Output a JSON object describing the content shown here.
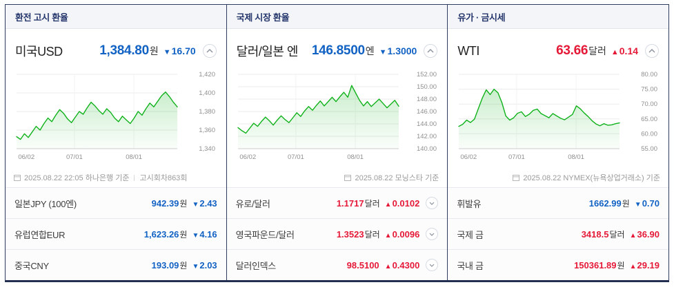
{
  "widget": {
    "colors": {
      "up": "#e51937",
      "down": "#1262c4",
      "line": "#10b21b",
      "border": "#2c3b5e"
    },
    "columns": [
      {
        "header": "환전 고시 환율",
        "main": {
          "name": "미국USD",
          "price": "1,384.80",
          "unit": "원",
          "arrow": "▼",
          "change": "16.70",
          "direction": "down"
        },
        "source": {
          "text": "2025.08.22 22:05 하나은행 기준",
          "extra": "고시회차863회"
        },
        "chart_data": {
          "type": "line",
          "ylim": [
            1340,
            1420
          ],
          "yticks": [
            "1,420",
            "1,400",
            "1,380",
            "1,360",
            "1,340"
          ],
          "xticks": [
            {
              "label": "06/02",
              "pos": 0.01
            },
            {
              "label": "07/01",
              "pos": 0.36
            },
            {
              "label": "08/01",
              "pos": 0.73
            }
          ],
          "line_color": "#10b21b",
          "values": [
            1353,
            1350,
            1356,
            1352,
            1358,
            1364,
            1360,
            1367,
            1373,
            1369,
            1376,
            1382,
            1378,
            1372,
            1368,
            1374,
            1380,
            1377,
            1384,
            1390,
            1386,
            1381,
            1377,
            1383,
            1379,
            1373,
            1369,
            1375,
            1371,
            1367,
            1373,
            1380,
            1376,
            1383,
            1389,
            1385,
            1391,
            1397,
            1401,
            1396,
            1390,
            1385
          ]
        },
        "rows": [
          {
            "name": "일본JPY (100엔)",
            "value": "942.39",
            "unit": "원",
            "arrow": "▼",
            "change": "2.43",
            "direction": "down"
          },
          {
            "name": "유럽연합EUR",
            "value": "1,623.26",
            "unit": "원",
            "arrow": "▼",
            "change": "4.16",
            "direction": "down"
          },
          {
            "name": "중국CNY",
            "value": "193.09",
            "unit": "원",
            "arrow": "▼",
            "change": "2.03",
            "direction": "down"
          }
        ]
      },
      {
        "header": "국제 시장 환율",
        "main": {
          "name": "달러/일본 엔",
          "price": "146.8500",
          "unit": "엔",
          "arrow": "▼",
          "change": "1.3000",
          "direction": "down"
        },
        "source": {
          "text": "2025.08.22 모닝스타 기준",
          "extra": ""
        },
        "chart_data": {
          "type": "line",
          "ylim": [
            140,
            152
          ],
          "yticks": [
            "152.00",
            "150.00",
            "148.00",
            "146.00",
            "144.00",
            "142.00",
            "140.00"
          ],
          "xticks": [
            {
              "label": "06/02",
              "pos": 0.01
            },
            {
              "label": "07/01",
              "pos": 0.36
            },
            {
              "label": "08/01",
              "pos": 0.73
            }
          ],
          "line_color": "#10b21b",
          "values": [
            143.4,
            142.9,
            142.5,
            143.3,
            144.1,
            143.6,
            144.4,
            145.1,
            144.5,
            143.8,
            144.6,
            145.3,
            144.7,
            144.2,
            145.0,
            145.8,
            145.2,
            146.1,
            146.8,
            146.2,
            147.0,
            147.7,
            146.9,
            147.6,
            148.3,
            147.6,
            148.4,
            149.1,
            148.3,
            150.2,
            149.0,
            147.8,
            146.9,
            147.6,
            146.8,
            147.4,
            148.0,
            147.3,
            146.6,
            147.2,
            147.8,
            146.85
          ]
        },
        "rows": [
          {
            "name": "유로/달러",
            "value": "1.1717",
            "unit": "달러",
            "arrow": "▲",
            "change": "0.0102",
            "direction": "up"
          },
          {
            "name": "영국파운드/달러",
            "value": "1.3523",
            "unit": "달러",
            "arrow": "▲",
            "change": "0.0096",
            "direction": "up"
          },
          {
            "name": "달러인덱스",
            "value": "98.5100",
            "unit": "",
            "arrow": "▲",
            "change": "0.4300",
            "direction": "up"
          }
        ]
      },
      {
        "header": "유가 · 금시세",
        "main": {
          "name": "WTI",
          "price": "63.66",
          "unit": "달러",
          "arrow": "▲",
          "change": "0.14",
          "direction": "up"
        },
        "source": {
          "text": "2025.08.22 NYMEX(뉴욕상업거래소) 기준",
          "extra": ""
        },
        "chart_data": {
          "type": "line",
          "ylim": [
            55,
            80
          ],
          "yticks": [
            "80.00",
            "75.00",
            "70.00",
            "65.00",
            "60.00",
            "55.00"
          ],
          "xticks": [
            {
              "label": "06/02",
              "pos": 0.01
            },
            {
              "label": "07/01",
              "pos": 0.36
            },
            {
              "label": "08/01",
              "pos": 0.73
            }
          ],
          "line_color": "#10b21b",
          "values": [
            62.5,
            63.2,
            64.6,
            63.8,
            64.9,
            68.5,
            72.0,
            74.8,
            73.2,
            75.0,
            73.8,
            70.5,
            66.0,
            64.6,
            65.4,
            66.9,
            67.4,
            65.8,
            66.6,
            67.9,
            68.3,
            66.8,
            66.1,
            65.4,
            66.8,
            66.0,
            65.2,
            64.7,
            65.6,
            66.5,
            69.4,
            68.4,
            67.0,
            65.8,
            64.4,
            63.3,
            62.7,
            63.4,
            62.9,
            63.0,
            63.4,
            63.66
          ]
        },
        "rows": [
          {
            "name": "휘발유",
            "value": "1662.99",
            "unit": "원",
            "arrow": "▼",
            "change": "0.70",
            "direction": "down"
          },
          {
            "name": "국제 금",
            "value": "3418.5",
            "unit": "달러",
            "arrow": "▲",
            "change": "36.90",
            "direction": "up"
          },
          {
            "name": "국내 금",
            "value": "150361.89",
            "unit": "원",
            "arrow": "▲",
            "change": "29.19",
            "direction": "up"
          }
        ]
      }
    ]
  }
}
